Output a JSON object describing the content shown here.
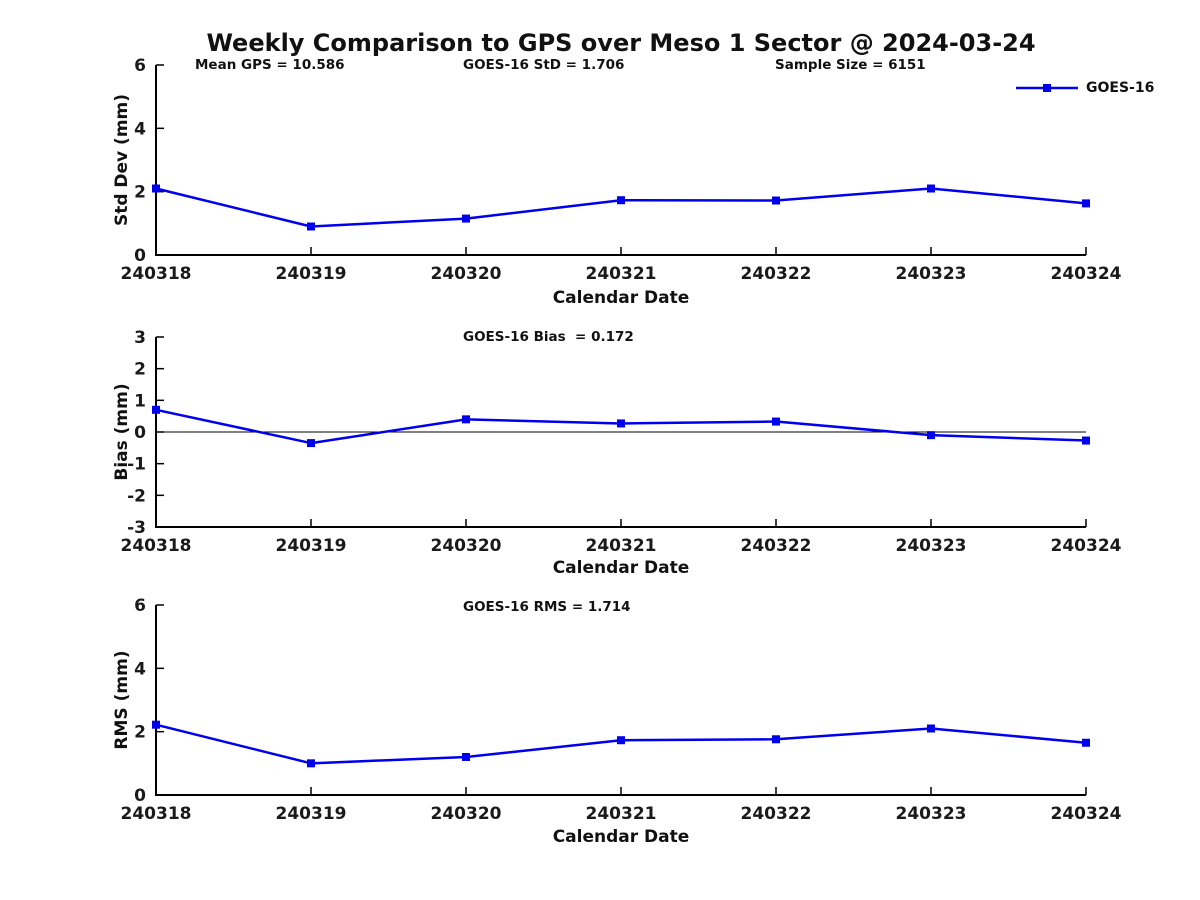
{
  "figure": {
    "title": "Weekly Comparison to GPS over Meso 1 Sector @ 2024-03-24",
    "stats": {
      "mean_gps": "Mean GPS = 10.586",
      "goes_std": "GOES-16 StD = 1.706",
      "sample_size": "Sample Size = 6151"
    },
    "legend": {
      "label": "GOES-16",
      "position": "top-right-subplot-1"
    },
    "colors": {
      "line": "#0000EE",
      "axis": "#000000",
      "text": "#111111",
      "background": "#ffffff"
    }
  },
  "chart_data": [
    {
      "id": "std-dev",
      "type": "line",
      "title": "",
      "xlabel": "Calendar Date",
      "ylabel": "Std Dev (mm)",
      "categories": [
        "240318",
        "240319",
        "240320",
        "240321",
        "240322",
        "240323",
        "240324"
      ],
      "series": [
        {
          "name": "GOES-16",
          "marker": "square",
          "values": [
            2.1,
            0.9,
            1.15,
            1.73,
            1.72,
            2.1,
            1.63
          ]
        }
      ],
      "ylim": [
        0,
        6
      ],
      "yticks": [
        0,
        2,
        4,
        6
      ],
      "grid": false,
      "zero_line": false
    },
    {
      "id": "bias",
      "type": "line",
      "title": "GOES-16 Bias  = 0.172",
      "xlabel": "Calendar Date",
      "ylabel": "Bias (mm)",
      "categories": [
        "240318",
        "240319",
        "240320",
        "240321",
        "240322",
        "240323",
        "240324"
      ],
      "series": [
        {
          "name": "GOES-16",
          "marker": "square",
          "values": [
            0.7,
            -0.35,
            0.4,
            0.27,
            0.33,
            -0.1,
            -0.27
          ]
        }
      ],
      "ylim": [
        -3,
        3
      ],
      "yticks": [
        -3,
        -2,
        -1,
        0,
        1,
        2,
        3
      ],
      "grid": false,
      "zero_line": true
    },
    {
      "id": "rms",
      "type": "line",
      "title": "GOES-16 RMS = 1.714",
      "xlabel": "Calendar Date",
      "ylabel": "RMS (mm)",
      "categories": [
        "240318",
        "240319",
        "240320",
        "240321",
        "240322",
        "240323",
        "240324"
      ],
      "series": [
        {
          "name": "GOES-16",
          "marker": "square",
          "values": [
            2.22,
            1.0,
            1.2,
            1.73,
            1.76,
            2.1,
            1.65
          ]
        }
      ],
      "ylim": [
        0,
        6
      ],
      "yticks": [
        0,
        2,
        4,
        6
      ],
      "grid": false,
      "zero_line": false
    }
  ]
}
